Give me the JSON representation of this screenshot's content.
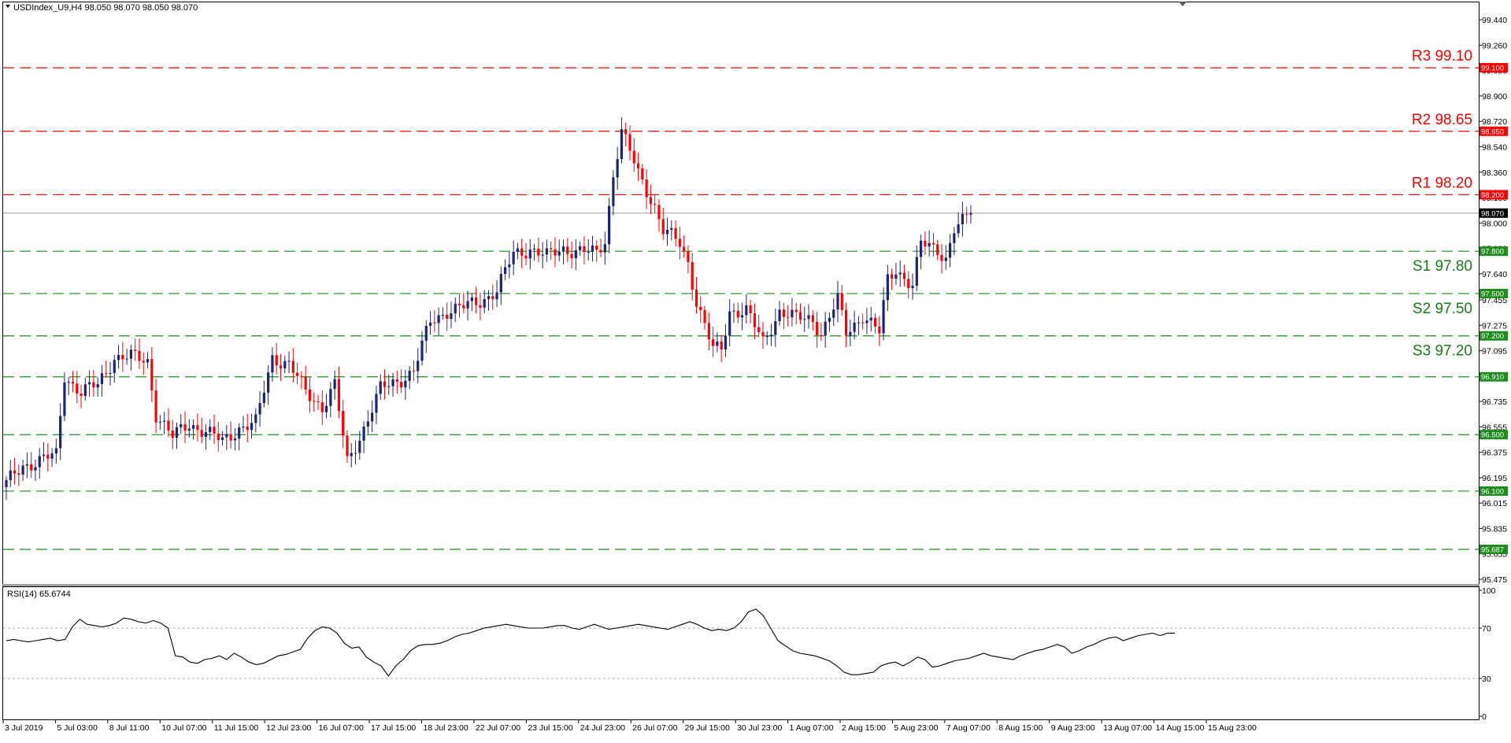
{
  "header": {
    "symbol_info": "USDIndex_U9,H4  98.050 98.070 98.050 98.070",
    "rsi_info": "RSI(14) 65.6744"
  },
  "colors": {
    "bull": "#1a237e",
    "bear": "#ff0000",
    "resistance": "#ff0000",
    "support": "#1e8c1e",
    "support_text": "#1a7a1a",
    "rsi_line": "#000000",
    "current_price_line": "#9e9e9e"
  },
  "chart_data": {
    "type": "candlestick",
    "ylim": [
      95.475,
      99.53
    ],
    "price_ticks": [
      "99.440",
      "99.260",
      "99.080",
      "98.900",
      "98.720",
      "98.540",
      "98.360",
      "98.180",
      "98.000",
      "97.820",
      "97.640",
      "97.455",
      "97.275",
      "97.095",
      "96.915",
      "96.735",
      "96.555",
      "96.375",
      "96.195",
      "96.015",
      "95.835",
      "95.655",
      "95.475"
    ],
    "current_price": "98.070",
    "levels": [
      {
        "price": 99.1,
        "tag": "99.100",
        "label": "R3 99.10",
        "kind": "resistance"
      },
      {
        "price": 98.65,
        "tag": "98.650",
        "label": "R2 98.65",
        "kind": "resistance"
      },
      {
        "price": 98.2,
        "tag": "98.200",
        "label": "R1 98.20",
        "kind": "resistance"
      },
      {
        "price": 97.8,
        "tag": "97.800",
        "label": "S1 97.80",
        "kind": "support"
      },
      {
        "price": 97.5,
        "tag": "97.500",
        "label": "S2 97.50",
        "kind": "support"
      },
      {
        "price": 97.2,
        "tag": "97.200",
        "label": "S3 97.20",
        "kind": "support"
      },
      {
        "price": 96.91,
        "tag": "96.910",
        "label": "",
        "kind": "support"
      },
      {
        "price": 96.5,
        "tag": "96.500",
        "label": "",
        "kind": "support"
      },
      {
        "price": 96.1,
        "tag": "96.100",
        "label": "",
        "kind": "support"
      },
      {
        "price": 95.687,
        "tag": "95.687",
        "label": "",
        "kind": "support"
      }
    ],
    "waypoints": [
      [
        0,
        96.15
      ],
      [
        4,
        96.28
      ],
      [
        8,
        96.32
      ],
      [
        12,
        96.35
      ],
      [
        14,
        96.92
      ],
      [
        18,
        96.8
      ],
      [
        22,
        96.85
      ],
      [
        26,
        97.05
      ],
      [
        30,
        97.05
      ],
      [
        34,
        97.02
      ],
      [
        36,
        96.65
      ],
      [
        40,
        96.48
      ],
      [
        44,
        96.58
      ],
      [
        48,
        96.52
      ],
      [
        52,
        96.45
      ],
      [
        56,
        96.55
      ],
      [
        60,
        96.58
      ],
      [
        64,
        97.05
      ],
      [
        68,
        97.0
      ],
      [
        72,
        96.8
      ],
      [
        76,
        96.7
      ],
      [
        79,
        96.85
      ],
      [
        82,
        96.3
      ],
      [
        86,
        96.55
      ],
      [
        90,
        96.82
      ],
      [
        94,
        96.88
      ],
      [
        98,
        96.95
      ],
      [
        102,
        97.3
      ],
      [
        106,
        97.38
      ],
      [
        110,
        97.4
      ],
      [
        114,
        97.45
      ],
      [
        118,
        97.52
      ],
      [
        122,
        97.78
      ],
      [
        126,
        97.82
      ],
      [
        130,
        97.76
      ],
      [
        134,
        97.82
      ],
      [
        138,
        97.8
      ],
      [
        142,
        97.78
      ],
      [
        144,
        97.88
      ],
      [
        146,
        98.35
      ],
      [
        148,
        98.65
      ],
      [
        152,
        98.35
      ],
      [
        156,
        98.12
      ],
      [
        158,
        97.95
      ],
      [
        162,
        97.85
      ],
      [
        164,
        97.72
      ],
      [
        166,
        97.45
      ],
      [
        170,
        97.1
      ],
      [
        172,
        97.1
      ],
      [
        174,
        97.38
      ],
      [
        178,
        97.38
      ],
      [
        182,
        97.15
      ],
      [
        186,
        97.38
      ],
      [
        190,
        97.32
      ],
      [
        194,
        97.32
      ],
      [
        196,
        97.22
      ],
      [
        200,
        97.45
      ],
      [
        202,
        97.22
      ],
      [
        206,
        97.35
      ],
      [
        210,
        97.22
      ],
      [
        212,
        97.6
      ],
      [
        214,
        97.68
      ],
      [
        218,
        97.55
      ],
      [
        220,
        97.85
      ],
      [
        224,
        97.82
      ],
      [
        226,
        97.75
      ],
      [
        228,
        97.95
      ],
      [
        230,
        98.0
      ],
      [
        232,
        98.07
      ]
    ],
    "rsi": {
      "ylim": [
        0,
        100
      ],
      "ticks": [
        "100",
        "70",
        "30",
        "0"
      ],
      "values": [
        60,
        61,
        60,
        59,
        60,
        61,
        62,
        60,
        61,
        71,
        77,
        73,
        72,
        71,
        72,
        74,
        78,
        77,
        75,
        74,
        76,
        74,
        70,
        48,
        47,
        43,
        42,
        45,
        46,
        48,
        45,
        50,
        47,
        43,
        41,
        42,
        45,
        48,
        49,
        51,
        53,
        62,
        68,
        71,
        70,
        66,
        58,
        54,
        55,
        47,
        43,
        40,
        32,
        40,
        45,
        52,
        56,
        57,
        57,
        58,
        60,
        63,
        65,
        66,
        68,
        70,
        71,
        72,
        73,
        72,
        71,
        70,
        70,
        70,
        71,
        72,
        72,
        70,
        69,
        71,
        73,
        71,
        69,
        70,
        71,
        72,
        73,
        72,
        71,
        70,
        69,
        71,
        73,
        75,
        73,
        70,
        68,
        69,
        68,
        70,
        75,
        83,
        85,
        80,
        70,
        60,
        56,
        52,
        50,
        49,
        48,
        46,
        44,
        40,
        35,
        33,
        33,
        34,
        35,
        40,
        42,
        43,
        40,
        43,
        47,
        45,
        39,
        40,
        42,
        44,
        45,
        46,
        48,
        50,
        48,
        47,
        46,
        45,
        48,
        50,
        52,
        53,
        55,
        57,
        55,
        50,
        52,
        55,
        57,
        60,
        62,
        63,
        60,
        62,
        64,
        65,
        66,
        64,
        66,
        66
      ]
    },
    "time_labels": [
      "3 Jul 2019",
      "5 Jul 03:00",
      "8 Jul 11:00",
      "10 Jul 07:00",
      "11 Jul 15:00",
      "12 Jul 23:00",
      "16 Jul 07:00",
      "17 Jul 15:00",
      "18 Jul 23:00",
      "22 Jul 07:00",
      "23 Jul 15:00",
      "24 Jul 23:00",
      "26 Jul 07:00",
      "29 Jul 15:00",
      "30 Jul 23:00",
      "1 Aug 07:00",
      "2 Aug 15:00",
      "5 Aug 23:00",
      "7 Aug 07:00",
      "8 Aug 15:00",
      "9 Aug 23:00",
      "13 Aug 07:00",
      "14 Aug 15:00",
      "15 Aug 23:00"
    ]
  }
}
